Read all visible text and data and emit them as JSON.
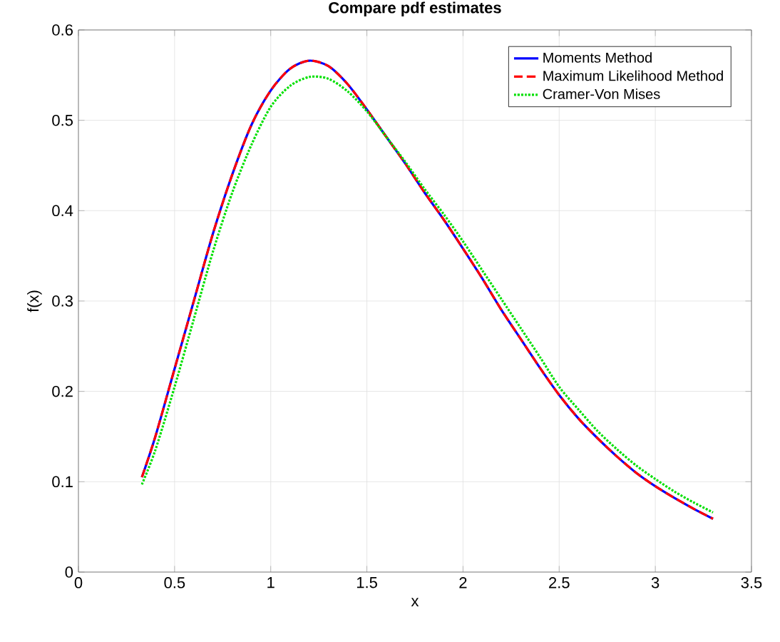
{
  "chart_data": {
    "type": "line",
    "title": "Compare pdf estimates",
    "xlabel": "x",
    "ylabel": "f(x)",
    "x": [
      0.33,
      0.4,
      0.5,
      0.6,
      0.7,
      0.8,
      0.9,
      1.0,
      1.1,
      1.2,
      1.3,
      1.4,
      1.5,
      1.6,
      1.7,
      1.8,
      1.9,
      2.0,
      2.1,
      2.2,
      2.3,
      2.4,
      2.5,
      2.6,
      2.7,
      2.8,
      2.9,
      3.0,
      3.1,
      3.2,
      3.3
    ],
    "series": [
      {
        "name": "Moments Method",
        "color": "#0000ff",
        "line_style": "solid",
        "values": [
          0.105,
          0.15,
          0.225,
          0.3,
          0.375,
          0.44,
          0.495,
          0.533,
          0.557,
          0.566,
          0.56,
          0.54,
          0.512,
          0.482,
          0.452,
          0.42,
          0.39,
          0.358,
          0.325,
          0.29,
          0.258,
          0.226,
          0.196,
          0.17,
          0.148,
          0.128,
          0.11,
          0.095,
          0.082,
          0.07,
          0.059
        ]
      },
      {
        "name": "Maximum Likelihood Method",
        "color": "#ff0000",
        "line_style": "dashed",
        "values": [
          0.105,
          0.15,
          0.225,
          0.3,
          0.375,
          0.44,
          0.495,
          0.533,
          0.557,
          0.566,
          0.56,
          0.54,
          0.512,
          0.482,
          0.452,
          0.42,
          0.39,
          0.358,
          0.325,
          0.29,
          0.258,
          0.226,
          0.196,
          0.17,
          0.148,
          0.128,
          0.11,
          0.095,
          0.082,
          0.07,
          0.059
        ]
      },
      {
        "name": "Cramer-Von Mises",
        "color": "#00e000",
        "line_style": "dotted",
        "values": [
          0.097,
          0.135,
          0.205,
          0.28,
          0.355,
          0.42,
          0.473,
          0.515,
          0.538,
          0.548,
          0.546,
          0.532,
          0.51,
          0.482,
          0.454,
          0.424,
          0.396,
          0.366,
          0.334,
          0.302,
          0.27,
          0.238,
          0.205,
          0.18,
          0.156,
          0.136,
          0.118,
          0.103,
          0.089,
          0.077,
          0.066
        ]
      }
    ],
    "xlim": [
      0,
      3.5
    ],
    "ylim": [
      0,
      0.6
    ],
    "xticks": [
      0,
      0.5,
      1,
      1.5,
      2,
      2.5,
      3,
      3.5
    ],
    "yticks": [
      0,
      0.1,
      0.2,
      0.3,
      0.4,
      0.5,
      0.6
    ],
    "grid": true,
    "legend": "top right",
    "marker": "none"
  }
}
